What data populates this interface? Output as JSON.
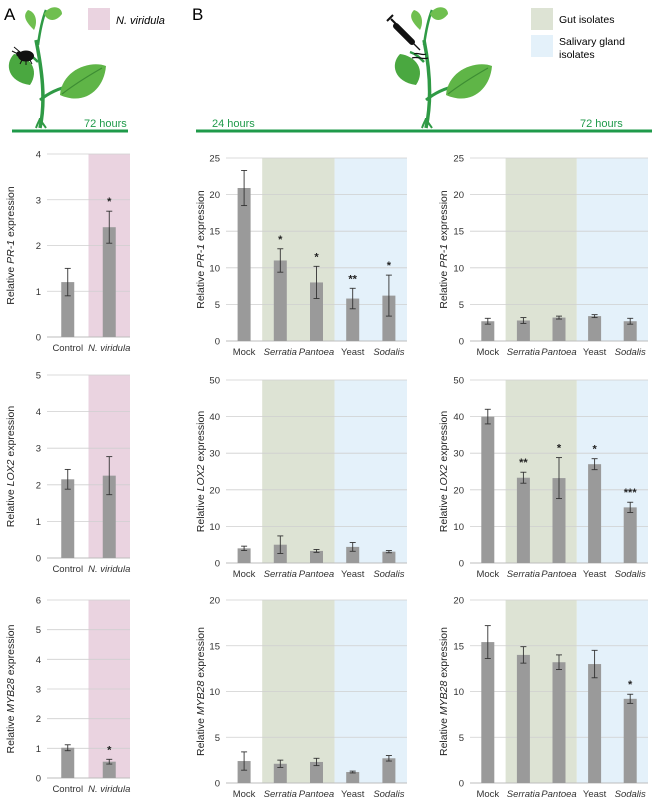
{
  "panels": {
    "a": "A",
    "b": "B"
  },
  "legend": {
    "a": {
      "label": "N. viridula",
      "color": "#ead3e0"
    },
    "b": [
      {
        "label_lines": [
          "Gut isolates"
        ],
        "color": "#dde3d4"
      },
      {
        "label_lines": [
          "Salivary gland",
          "isolates"
        ],
        "color": "#e4f1fa"
      }
    ]
  },
  "timelines": {
    "a": {
      "label": "72 hours"
    },
    "b": {
      "start": "24 hours",
      "end": "72 hours"
    },
    "color": "#1f9a4a"
  },
  "bar_color": "#9a9a9a",
  "chart_data": [
    {
      "id": "a-pr1",
      "type": "bar",
      "title": "",
      "xlabel": "",
      "ylabel_parts": [
        "Relative ",
        "PR-1",
        " expression"
      ],
      "ylim": [
        0,
        4
      ],
      "yticks": [
        0,
        1,
        2,
        3,
        4
      ],
      "categories": [
        "Control",
        "N. viridula"
      ],
      "italic": [
        false,
        true
      ],
      "values": [
        1.2,
        2.4
      ],
      "errors": [
        0.3,
        0.35
      ],
      "sig": [
        "",
        "*"
      ],
      "shading": [
        {
          "from": 1,
          "to": 1,
          "color": "#ead3e0"
        }
      ]
    },
    {
      "id": "a-lox2",
      "type": "bar",
      "title": "",
      "xlabel": "",
      "ylabel_parts": [
        "Relative ",
        "LOX2",
        " expression"
      ],
      "ylim": [
        0,
        5
      ],
      "yticks": [
        0,
        1,
        2,
        3,
        4,
        5
      ],
      "categories": [
        "Control",
        "N. viridula"
      ],
      "italic": [
        false,
        true
      ],
      "values": [
        2.15,
        2.25
      ],
      "errors": [
        0.27,
        0.52
      ],
      "sig": [
        "",
        ""
      ],
      "shading": [
        {
          "from": 1,
          "to": 1,
          "color": "#ead3e0"
        }
      ]
    },
    {
      "id": "a-myb28",
      "type": "bar",
      "title": "",
      "xlabel": "",
      "ylabel_parts": [
        "Relative ",
        "MYB28",
        " expression"
      ],
      "ylim": [
        0,
        6
      ],
      "yticks": [
        0,
        1,
        2,
        3,
        4,
        5,
        6
      ],
      "categories": [
        "Control",
        "N. viridula"
      ],
      "italic": [
        false,
        true
      ],
      "values": [
        1.02,
        0.55
      ],
      "errors": [
        0.1,
        0.08
      ],
      "sig": [
        "",
        "*"
      ],
      "shading": [
        {
          "from": 1,
          "to": 1,
          "color": "#ead3e0"
        }
      ]
    },
    {
      "id": "b24-pr1",
      "type": "bar",
      "title": "",
      "xlabel": "",
      "ylabel_parts": [
        "Relative ",
        "PR-1",
        " expression"
      ],
      "ylim": [
        0,
        25
      ],
      "yticks": [
        0,
        5,
        10,
        15,
        20,
        25
      ],
      "categories": [
        "Mock",
        "Serratia",
        "Pantoea",
        "Yeast",
        "Sodalis"
      ],
      "italic": [
        false,
        true,
        true,
        false,
        true
      ],
      "values": [
        20.9,
        11.0,
        8.0,
        5.8,
        6.2
      ],
      "errors": [
        2.4,
        1.6,
        2.2,
        1.4,
        2.8
      ],
      "sig": [
        "",
        "*",
        "*",
        "**",
        "*"
      ],
      "shading": [
        {
          "from": 1,
          "to": 2,
          "color": "#dde3d4"
        },
        {
          "from": 3,
          "to": 4,
          "color": "#e4f1fa"
        }
      ]
    },
    {
      "id": "b72-pr1",
      "type": "bar",
      "title": "",
      "xlabel": "",
      "ylabel_parts": [
        "Relative ",
        "PR-1",
        " expression"
      ],
      "ylim": [
        0,
        25
      ],
      "yticks": [
        0,
        5,
        10,
        15,
        20,
        25
      ],
      "categories": [
        "Mock",
        "Serratia",
        "Pantoea",
        "Yeast",
        "Sodalis"
      ],
      "italic": [
        false,
        true,
        true,
        false,
        true
      ],
      "values": [
        2.7,
        2.8,
        3.2,
        3.4,
        2.7
      ],
      "errors": [
        0.4,
        0.4,
        0.2,
        0.2,
        0.4
      ],
      "sig": [
        "",
        "",
        "",
        "",
        ""
      ],
      "shading": [
        {
          "from": 1,
          "to": 2,
          "color": "#dde3d4"
        },
        {
          "from": 3,
          "to": 4,
          "color": "#e4f1fa"
        }
      ]
    },
    {
      "id": "b24-lox2",
      "type": "bar",
      "title": "",
      "xlabel": "",
      "ylabel_parts": [
        "Relative ",
        "LOX2",
        " expression"
      ],
      "ylim": [
        0,
        50
      ],
      "yticks": [
        0,
        10,
        20,
        30,
        40,
        50
      ],
      "categories": [
        "Mock",
        "Serratia",
        "Pantoea",
        "Yeast",
        "Sodalis"
      ],
      "italic": [
        false,
        true,
        true,
        false,
        true
      ],
      "values": [
        4.0,
        5.0,
        3.3,
        4.4,
        3.1
      ],
      "errors": [
        0.6,
        2.4,
        0.4,
        1.2,
        0.3
      ],
      "sig": [
        "",
        "",
        "",
        "",
        ""
      ],
      "shading": [
        {
          "from": 1,
          "to": 2,
          "color": "#dde3d4"
        },
        {
          "from": 3,
          "to": 4,
          "color": "#e4f1fa"
        }
      ]
    },
    {
      "id": "b72-lox2",
      "type": "bar",
      "title": "",
      "xlabel": "",
      "ylabel_parts": [
        "Relative ",
        "LOX2",
        " expression"
      ],
      "ylim": [
        0,
        50
      ],
      "yticks": [
        0,
        10,
        20,
        30,
        40,
        50
      ],
      "categories": [
        "Mock",
        "Serratia",
        "Pantoea",
        "Yeast",
        "Sodalis"
      ],
      "italic": [
        false,
        true,
        true,
        false,
        true
      ],
      "values": [
        40.0,
        23.3,
        23.2,
        27.0,
        15.2
      ],
      "errors": [
        2.0,
        1.5,
        5.6,
        1.5,
        1.4
      ],
      "sig": [
        "",
        "**",
        "*",
        "*",
        "***"
      ],
      "shading": [
        {
          "from": 1,
          "to": 2,
          "color": "#dde3d4"
        },
        {
          "from": 3,
          "to": 4,
          "color": "#e4f1fa"
        }
      ]
    },
    {
      "id": "b24-myb28",
      "type": "bar",
      "title": "",
      "xlabel": "",
      "ylabel_parts": [
        "Relative ",
        "MYB28",
        " expression"
      ],
      "ylim": [
        0,
        20
      ],
      "yticks": [
        0,
        5,
        10,
        15,
        20
      ],
      "categories": [
        "Mock",
        "Serratia",
        "Pantoea",
        "Yeast",
        "Sodalis"
      ],
      "italic": [
        false,
        true,
        true,
        false,
        true
      ],
      "values": [
        2.4,
        2.1,
        2.3,
        1.2,
        2.7
      ],
      "errors": [
        1.0,
        0.4,
        0.4,
        0.1,
        0.3
      ],
      "sig": [
        "",
        "",
        "",
        "",
        ""
      ],
      "shading": [
        {
          "from": 1,
          "to": 2,
          "color": "#dde3d4"
        },
        {
          "from": 3,
          "to": 4,
          "color": "#e4f1fa"
        }
      ]
    },
    {
      "id": "b72-myb28",
      "type": "bar",
      "title": "",
      "xlabel": "",
      "ylabel_parts": [
        "Relative ",
        "MYB28",
        " expression"
      ],
      "ylim": [
        0,
        20
      ],
      "yticks": [
        0,
        5,
        10,
        15,
        20
      ],
      "categories": [
        "Mock",
        "Serratia",
        "Pantoea",
        "Yeast",
        "Sodalis"
      ],
      "italic": [
        false,
        true,
        true,
        false,
        true
      ],
      "values": [
        15.4,
        14.0,
        13.2,
        13.0,
        9.2
      ],
      "errors": [
        1.8,
        0.9,
        0.8,
        1.5,
        0.5
      ],
      "sig": [
        "",
        "",
        "",
        "",
        "*"
      ],
      "shading": [
        {
          "from": 1,
          "to": 2,
          "color": "#dde3d4"
        },
        {
          "from": 3,
          "to": 4,
          "color": "#e4f1fa"
        }
      ]
    }
  ]
}
